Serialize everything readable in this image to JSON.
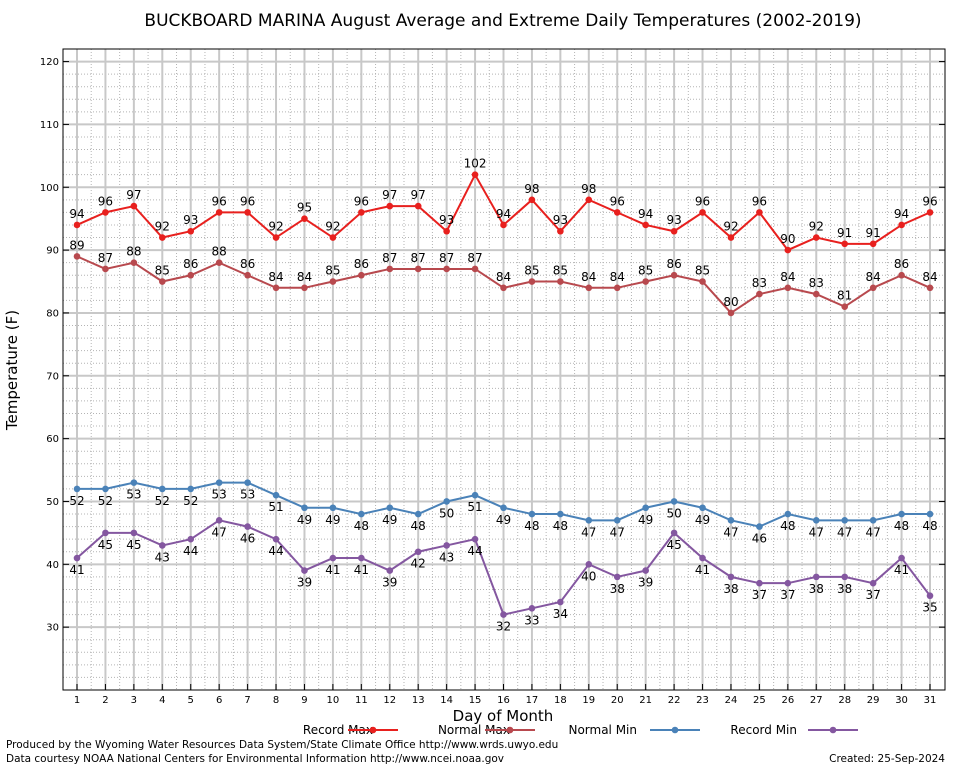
{
  "chart_data": {
    "type": "line",
    "title": "BUCKBOARD MARINA August Average and Extreme Daily Temperatures (2002-2019)",
    "xlabel": "Day of Month",
    "ylabel": "Temperature (F)",
    "ylim": [
      20,
      122
    ],
    "yticks": [
      30,
      40,
      50,
      60,
      70,
      80,
      90,
      100,
      110,
      120
    ],
    "x": [
      1,
      2,
      3,
      4,
      5,
      6,
      7,
      8,
      9,
      10,
      11,
      12,
      13,
      14,
      15,
      16,
      17,
      18,
      19,
      20,
      21,
      22,
      23,
      24,
      25,
      26,
      27,
      28,
      29,
      30,
      31
    ],
    "grid": true,
    "legend_position": "bottom",
    "series": [
      {
        "name": "Record Max",
        "color": "#e8201e",
        "label_position": "above",
        "values": [
          94,
          96,
          97,
          92,
          93,
          96,
          96,
          92,
          95,
          92,
          96,
          97,
          97,
          93,
          102,
          94,
          98,
          93,
          98,
          96,
          94,
          93,
          96,
          92,
          96,
          90,
          92,
          91,
          91,
          94,
          96
        ]
      },
      {
        "name": "Normal Max",
        "color": "#b8494e",
        "label_position": "above",
        "values": [
          89,
          87,
          88,
          85,
          86,
          88,
          86,
          84,
          84,
          85,
          86,
          87,
          87,
          87,
          87,
          84,
          85,
          85,
          84,
          84,
          85,
          86,
          85,
          80,
          83,
          84,
          83,
          81,
          84,
          86,
          84
        ]
      },
      {
        "name": "Normal Min",
        "color": "#4a82b8",
        "label_position": "below",
        "values": [
          52,
          52,
          53,
          52,
          52,
          53,
          53,
          51,
          49,
          49,
          48,
          49,
          48,
          50,
          51,
          49,
          48,
          48,
          47,
          47,
          49,
          50,
          49,
          47,
          46,
          48,
          47,
          47,
          47,
          48,
          48
        ]
      },
      {
        "name": "Record Min",
        "color": "#8457a0",
        "label_position": "below",
        "values": [
          41,
          45,
          45,
          43,
          44,
          47,
          46,
          44,
          39,
          41,
          41,
          39,
          42,
          43,
          44,
          32,
          33,
          34,
          40,
          38,
          39,
          45,
          41,
          38,
          37,
          37,
          38,
          38,
          37,
          41,
          35
        ]
      }
    ]
  },
  "footer": {
    "produced_by": "Produced by the Wyoming Water Resources Data System/State Climate Office http://www.wrds.uwyo.edu",
    "data_courtesy": "Data courtesy NOAA National Centers for Environmental Information http://www.ncei.noaa.gov",
    "created": "Created:  25-Sep-2024"
  }
}
